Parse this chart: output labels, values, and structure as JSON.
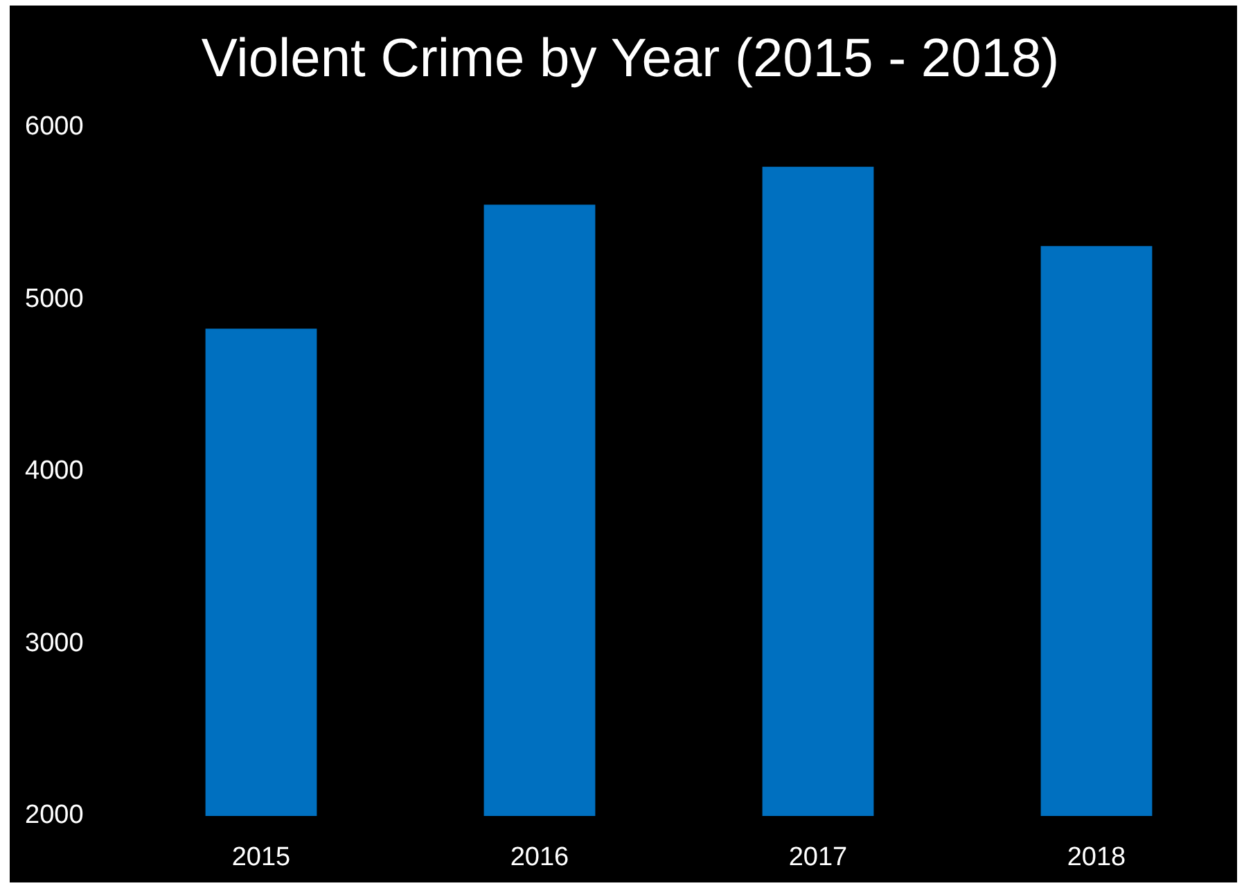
{
  "chart_data": {
    "type": "bar",
    "title": "Violent Crime by Year (2015 - 2018)",
    "categories": [
      "2015",
      "2016",
      "2017",
      "2018"
    ],
    "values": [
      4830,
      5550,
      5770,
      5310
    ],
    "color": "#0070c0",
    "ylim": [
      2000,
      6000
    ],
    "yticks": [
      2000,
      3000,
      4000,
      5000,
      6000
    ]
  }
}
